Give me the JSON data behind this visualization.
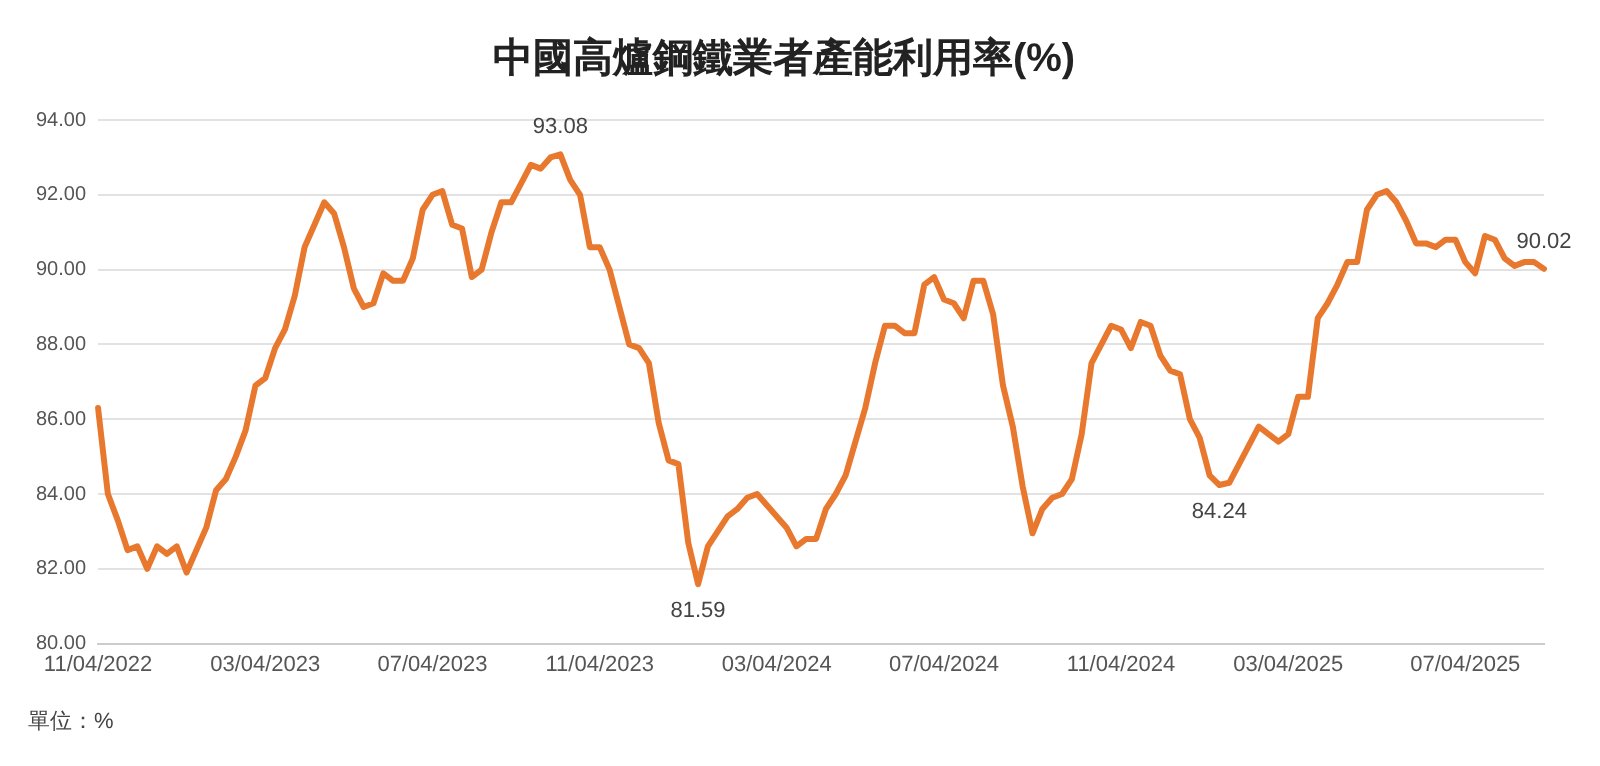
{
  "chart_data": {
    "type": "line",
    "title": "中國高爐鋼鐵業者產能利用率(%)",
    "categories": [
      "11/04/2022",
      null,
      null,
      null,
      null,
      null,
      null,
      null,
      null,
      null,
      null,
      null,
      null,
      null,
      null,
      null,
      null,
      "03/04/2023",
      null,
      null,
      null,
      null,
      null,
      null,
      null,
      null,
      null,
      null,
      null,
      null,
      null,
      null,
      null,
      null,
      "07/04/2023",
      null,
      null,
      null,
      null,
      null,
      null,
      null,
      null,
      null,
      null,
      null,
      null,
      null,
      null,
      null,
      null,
      "11/04/2023",
      null,
      null,
      null,
      null,
      null,
      null,
      null,
      null,
      null,
      null,
      null,
      null,
      null,
      null,
      null,
      null,
      null,
      "03/04/2024",
      null,
      null,
      null,
      null,
      null,
      null,
      null,
      null,
      null,
      null,
      null,
      null,
      null,
      null,
      null,
      null,
      "07/04/2024",
      null,
      null,
      null,
      null,
      null,
      null,
      null,
      null,
      null,
      null,
      null,
      null,
      null,
      null,
      null,
      null,
      null,
      "11/04/2024",
      null,
      null,
      null,
      null,
      null,
      null,
      null,
      null,
      null,
      null,
      null,
      null,
      null,
      null,
      null,
      null,
      "03/04/2025",
      null,
      null,
      null,
      null,
      null,
      null,
      null,
      null,
      null,
      null,
      null,
      null,
      null,
      null,
      null,
      null,
      null,
      "07/04/2025",
      null,
      null,
      null,
      null,
      null,
      null,
      null,
      null
    ],
    "series": [
      {
        "color": "#e8782e",
        "values": [
          86.3,
          84.0,
          83.3,
          82.5,
          82.6,
          82.0,
          82.6,
          82.4,
          82.6,
          81.9,
          82.5,
          83.1,
          84.1,
          84.4,
          85.0,
          85.7,
          86.9,
          87.1,
          87.9,
          88.4,
          89.3,
          90.6,
          91.2,
          91.8,
          91.5,
          90.6,
          89.5,
          89.0,
          89.1,
          89.9,
          89.7,
          89.7,
          90.3,
          91.6,
          92.0,
          92.1,
          91.2,
          91.1,
          89.8,
          90.0,
          91.0,
          91.8,
          91.8,
          92.3,
          92.8,
          92.7,
          93.0,
          93.08,
          92.4,
          92.0,
          90.6,
          90.6,
          90.0,
          89.0,
          88.0,
          87.9,
          87.5,
          85.9,
          84.9,
          84.8,
          82.7,
          81.59,
          82.6,
          83.0,
          83.4,
          83.6,
          83.9,
          84.0,
          83.7,
          83.4,
          83.1,
          82.6,
          82.8,
          82.8,
          83.6,
          84.0,
          84.5,
          85.4,
          86.3,
          87.5,
          88.5,
          88.5,
          88.3,
          88.3,
          89.6,
          89.8,
          89.2,
          89.1,
          88.7,
          89.7,
          89.7,
          88.8,
          86.9,
          85.8,
          84.2,
          82.95,
          83.6,
          83.9,
          84.0,
          84.4,
          85.6,
          87.5,
          88.0,
          88.5,
          88.4,
          87.9,
          88.6,
          88.5,
          87.7,
          87.3,
          87.2,
          86.0,
          85.5,
          84.5,
          84.24,
          84.3,
          84.8,
          85.3,
          85.8,
          85.6,
          85.4,
          85.6,
          86.6,
          86.6,
          88.7,
          89.1,
          89.6,
          90.2,
          90.2,
          91.6,
          92.0,
          92.1,
          91.8,
          91.3,
          90.7,
          90.7,
          90.6,
          90.8,
          90.8,
          90.2,
          89.9,
          90.9,
          90.8,
          90.3,
          90.1,
          90.2,
          90.2,
          90.02
        ],
        "value_labels": [
          null,
          null,
          null,
          null,
          null,
          null,
          null,
          null,
          null,
          null,
          null,
          null,
          null,
          null,
          null,
          null,
          null,
          null,
          null,
          null,
          null,
          null,
          null,
          null,
          null,
          null,
          null,
          null,
          null,
          null,
          null,
          null,
          null,
          null,
          null,
          null,
          null,
          null,
          null,
          null,
          null,
          null,
          null,
          null,
          null,
          null,
          null,
          "93.08",
          null,
          null,
          null,
          null,
          null,
          null,
          null,
          null,
          null,
          null,
          null,
          null,
          null,
          "81.59",
          null,
          null,
          null,
          null,
          null,
          null,
          null,
          null,
          null,
          null,
          null,
          null,
          null,
          null,
          null,
          null,
          null,
          null,
          null,
          null,
          null,
          null,
          null,
          null,
          null,
          null,
          null,
          null,
          null,
          null,
          null,
          null,
          null,
          null,
          null,
          null,
          null,
          null,
          null,
          null,
          null,
          null,
          null,
          null,
          null,
          null,
          null,
          null,
          null,
          null,
          null,
          null,
          "84.24",
          null,
          null,
          null,
          null,
          null,
          null,
          null,
          null,
          null,
          null,
          null,
          null,
          null,
          null,
          null,
          null,
          null,
          null,
          null,
          null,
          null,
          null,
          null,
          null,
          null,
          null,
          null,
          null,
          null,
          null,
          null,
          null,
          "90.02"
        ]
      }
    ],
    "ylim": [
      80,
      94
    ],
    "yticks": [
      {
        "value": 80,
        "label": "80.00"
      },
      {
        "value": 82,
        "label": "82.00"
      },
      {
        "value": 84,
        "label": "84.00"
      },
      {
        "value": 86,
        "label": "86.00"
      },
      {
        "value": 88,
        "label": "88.00"
      },
      {
        "value": 90,
        "label": "90.00"
      },
      {
        "value": 92,
        "label": "92.00"
      },
      {
        "value": 94,
        "label": "94.00"
      }
    ],
    "grid": "y",
    "legend": false,
    "marker": "none",
    "line_style": "solid",
    "annotations": [
      "單位：%"
    ]
  }
}
